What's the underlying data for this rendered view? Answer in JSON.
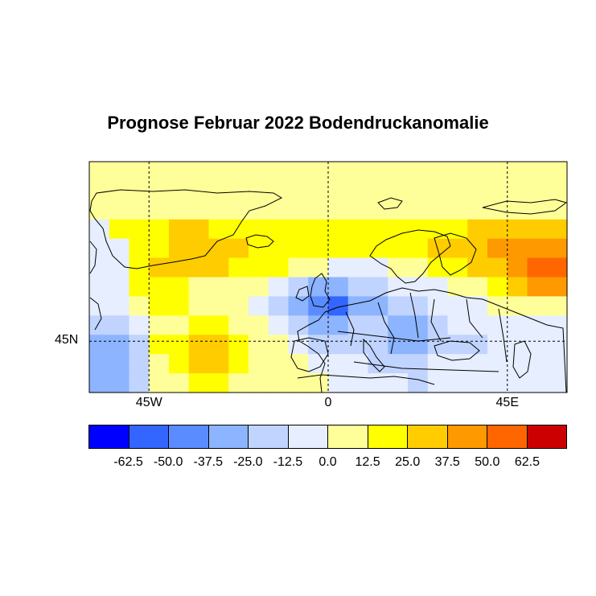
{
  "title": "Prognose Februar 2022 Bodendruckanomalie",
  "axes": {
    "lon_labels": [
      {
        "value": -45,
        "text": "45W"
      },
      {
        "value": 0,
        "text": "0"
      },
      {
        "value": 45,
        "text": "45E"
      }
    ],
    "lat_labels": [
      {
        "value": 45,
        "text": "45N"
      }
    ],
    "lon_range": [
      -60,
      60
    ],
    "lat_range": [
      35,
      80
    ],
    "grid": "dashed"
  },
  "colorbar": {
    "colors": [
      "#0000ff",
      "#3366ff",
      "#5a8cff",
      "#8cb4ff",
      "#c0d4ff",
      "#e6eeff",
      "#ffff99",
      "#ffff00",
      "#ffcc00",
      "#ff9900",
      "#ff6600",
      "#cc0000"
    ],
    "labels": [
      "-62.5",
      "-50.0",
      "-37.5",
      "-25.0",
      "-12.5",
      "0.0",
      "12.5",
      "25.0",
      "37.5",
      "50.0",
      "62.5"
    ]
  },
  "field": {
    "unit_step": 12.5,
    "cols": 24,
    "rows": 12,
    "levels": [
      [
        6,
        6,
        6,
        6,
        6,
        6,
        6,
        6,
        6,
        6,
        6,
        6,
        6,
        6,
        6,
        6,
        6,
        6,
        6,
        6,
        6,
        6,
        6,
        6
      ],
      [
        6,
        6,
        6,
        6,
        6,
        6,
        6,
        6,
        6,
        6,
        6,
        6,
        6,
        6,
        6,
        6,
        6,
        6,
        6,
        6,
        6,
        6,
        6,
        6
      ],
      [
        6,
        6,
        6,
        6,
        6,
        6,
        6,
        6,
        6,
        6,
        6,
        6,
        6,
        6,
        6,
        6,
        6,
        6,
        6,
        6,
        6,
        6,
        6,
        6
      ],
      [
        5,
        7,
        7,
        7,
        8,
        8,
        7,
        7,
        7,
        7,
        7,
        7,
        7,
        7,
        7,
        7,
        7,
        7,
        7,
        8,
        8,
        8,
        8,
        8
      ],
      [
        5,
        5,
        7,
        7,
        8,
        8,
        8,
        8,
        7,
        7,
        7,
        7,
        7,
        7,
        7,
        7,
        7,
        8,
        8,
        8,
        9,
        9,
        9,
        9
      ],
      [
        5,
        5,
        7,
        8,
        8,
        8,
        8,
        7,
        7,
        7,
        6,
        6,
        5,
        5,
        5,
        6,
        6,
        7,
        7,
        8,
        8,
        9,
        10,
        10
      ],
      [
        5,
        5,
        7,
        7,
        7,
        6,
        6,
        6,
        6,
        5,
        4,
        3,
        3,
        4,
        4,
        5,
        5,
        5,
        6,
        6,
        7,
        8,
        9,
        9
      ],
      [
        5,
        5,
        6,
        7,
        7,
        6,
        6,
        6,
        5,
        4,
        3,
        2,
        1,
        3,
        3,
        4,
        4,
        5,
        5,
        5,
        6,
        6,
        6,
        6
      ],
      [
        4,
        4,
        5,
        6,
        6,
        7,
        7,
        6,
        6,
        5,
        4,
        3,
        3,
        4,
        4,
        3,
        3,
        4,
        5,
        5,
        5,
        5,
        5,
        5
      ],
      [
        3,
        3,
        4,
        7,
        7,
        8,
        8,
        7,
        6,
        6,
        5,
        4,
        4,
        4,
        4,
        3,
        3,
        4,
        4,
        4,
        5,
        5,
        5,
        5
      ],
      [
        3,
        3,
        4,
        6,
        7,
        8,
        8,
        7,
        6,
        6,
        6,
        5,
        5,
        5,
        4,
        4,
        4,
        5,
        5,
        5,
        5,
        5,
        5,
        5
      ],
      [
        3,
        3,
        4,
        6,
        6,
        7,
        7,
        6,
        6,
        6,
        6,
        6,
        5,
        5,
        5,
        5,
        4,
        5,
        5,
        5,
        5,
        5,
        5,
        5
      ]
    ]
  }
}
